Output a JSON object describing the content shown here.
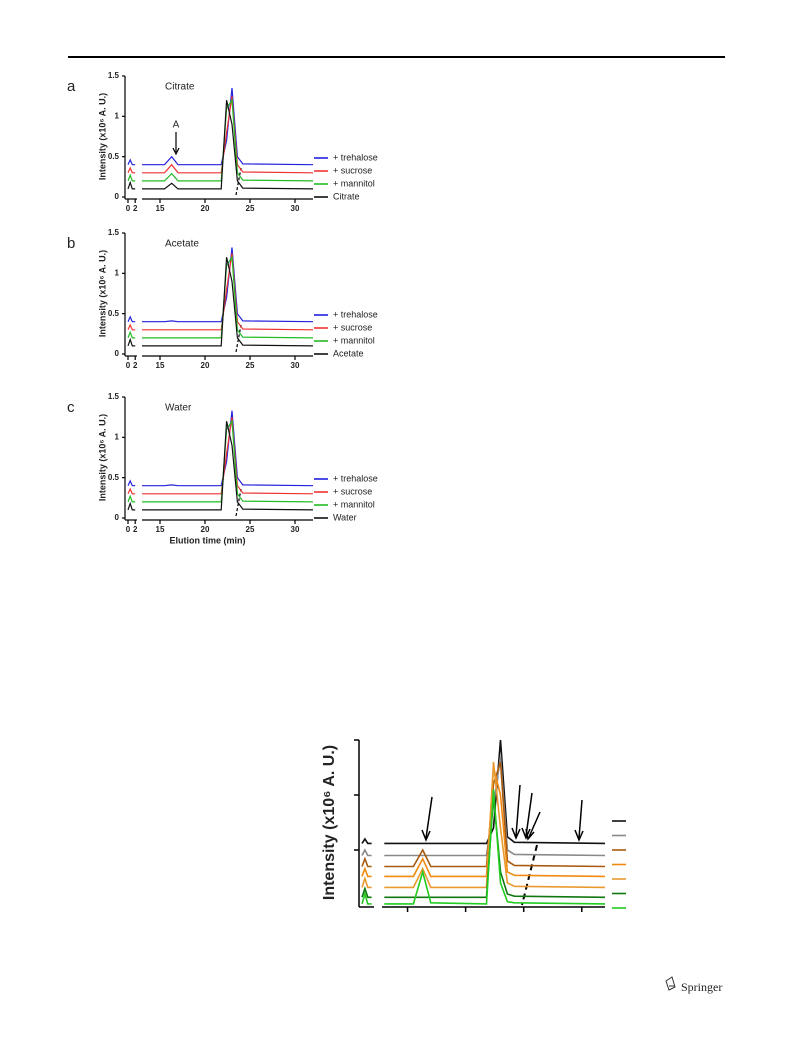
{
  "chart_data": [
    {
      "type": "line",
      "panel_label": "a",
      "subtitle": "Citrate",
      "annotation": "A",
      "ylabel": "Intensity (x10⁶ A. U.)",
      "xlim": [
        0,
        32
      ],
      "xticks": [
        0,
        2,
        15,
        20,
        25,
        30
      ],
      "ylim": [
        0,
        1.5
      ],
      "yticks": [
        0,
        0.5,
        1,
        1.5
      ],
      "x": [
        0,
        0.6,
        1.2,
        2,
        13,
        15.5,
        16.3,
        17,
        21.8,
        22.4,
        23,
        23.6,
        24.2,
        32
      ],
      "series": [
        {
          "name": "+ trehalose",
          "color": "#2222dd",
          "values": [
            0.4,
            0.46,
            0.4,
            0.4,
            0.4,
            0.4,
            0.5,
            0.4,
            0.4,
            0.7,
            1.35,
            0.5,
            0.41,
            0.4
          ]
        },
        {
          "name": "+ sucrose",
          "color": "#ee3333",
          "values": [
            0.3,
            0.36,
            0.3,
            0.3,
            0.3,
            0.3,
            0.4,
            0.3,
            0.3,
            0.8,
            1.25,
            0.4,
            0.31,
            0.3
          ]
        },
        {
          "name": "+ mannitol",
          "color": "#22bb22",
          "values": [
            0.2,
            0.27,
            0.2,
            0.2,
            0.2,
            0.2,
            0.29,
            0.2,
            0.2,
            1.1,
            1.2,
            0.3,
            0.21,
            0.2
          ]
        },
        {
          "name": "Citrate",
          "color": "#111111",
          "values": [
            0.1,
            0.18,
            0.1,
            0.1,
            0.1,
            0.1,
            0.17,
            0.1,
            0.1,
            1.2,
            0.9,
            0.2,
            0.11,
            0.1
          ]
        }
      ]
    },
    {
      "type": "line",
      "panel_label": "b",
      "subtitle": "Acetate",
      "ylabel": "Intensity (x10⁶ A. U.)",
      "xlim": [
        0,
        32
      ],
      "xticks": [
        0,
        2,
        15,
        20,
        25,
        30
      ],
      "ylim": [
        0,
        1.5
      ],
      "yticks": [
        0,
        0.5,
        1,
        1.5
      ],
      "x": [
        0,
        0.6,
        1.2,
        2,
        13,
        15.5,
        16.3,
        17,
        21.8,
        22.4,
        23,
        23.6,
        24.2,
        32
      ],
      "series": [
        {
          "name": "+ trehalose",
          "color": "#2222dd",
          "values": [
            0.4,
            0.46,
            0.4,
            0.4,
            0.4,
            0.4,
            0.41,
            0.4,
            0.4,
            0.7,
            1.32,
            0.5,
            0.41,
            0.4
          ]
        },
        {
          "name": "+ sucrose",
          "color": "#ee3333",
          "values": [
            0.3,
            0.36,
            0.3,
            0.3,
            0.3,
            0.3,
            0.3,
            0.3,
            0.3,
            0.8,
            1.25,
            0.4,
            0.31,
            0.3
          ]
        },
        {
          "name": "+ mannitol",
          "color": "#22bb22",
          "values": [
            0.2,
            0.27,
            0.2,
            0.2,
            0.2,
            0.2,
            0.2,
            0.2,
            0.2,
            1.1,
            1.2,
            0.3,
            0.21,
            0.2
          ]
        },
        {
          "name": "Acetate",
          "color": "#111111",
          "values": [
            0.1,
            0.18,
            0.1,
            0.1,
            0.1,
            0.1,
            0.1,
            0.1,
            0.1,
            1.2,
            0.9,
            0.2,
            0.11,
            0.1
          ]
        }
      ]
    },
    {
      "type": "line",
      "panel_label": "c",
      "subtitle": "Water",
      "xlabel": "Elution time (min)",
      "ylabel": "Intensity (x10⁶ A. U.)",
      "xlim": [
        0,
        32
      ],
      "xticks": [
        0,
        2,
        15,
        20,
        25,
        30
      ],
      "ylim": [
        0,
        1.5
      ],
      "yticks": [
        0,
        0.5,
        1,
        1.5
      ],
      "x": [
        0,
        0.6,
        1.2,
        2,
        13,
        15.5,
        16.3,
        17,
        21.8,
        22.4,
        23,
        23.6,
        24.2,
        32
      ],
      "series": [
        {
          "name": "+ trehalose",
          "color": "#2222dd",
          "values": [
            0.4,
            0.46,
            0.4,
            0.4,
            0.4,
            0.4,
            0.41,
            0.4,
            0.4,
            0.7,
            1.33,
            0.5,
            0.41,
            0.4
          ]
        },
        {
          "name": "+ sucrose",
          "color": "#ee3333",
          "values": [
            0.3,
            0.36,
            0.3,
            0.3,
            0.3,
            0.3,
            0.3,
            0.3,
            0.3,
            0.8,
            1.25,
            0.4,
            0.31,
            0.3
          ]
        },
        {
          "name": "+ mannitol",
          "color": "#22bb22",
          "values": [
            0.2,
            0.27,
            0.2,
            0.2,
            0.2,
            0.2,
            0.2,
            0.2,
            0.2,
            1.1,
            1.2,
            0.3,
            0.21,
            0.2
          ]
        },
        {
          "name": "Water",
          "color": "#111111",
          "values": [
            0.1,
            0.18,
            0.1,
            0.1,
            0.1,
            0.1,
            0.1,
            0.1,
            0.1,
            1.2,
            0.9,
            0.2,
            0.11,
            0.1
          ]
        }
      ]
    },
    {
      "type": "line",
      "ylabel": "Intensity (x10⁶ A. U.)",
      "xlim": [
        0,
        32
      ],
      "ylim": [
        0,
        1.5
      ],
      "x": [
        0,
        0.6,
        1.2,
        2,
        13,
        15.5,
        16.3,
        17,
        21.8,
        22.4,
        23,
        23.6,
        24.2,
        32
      ],
      "series": [
        {
          "color": "#111111",
          "values": [
            0.56,
            0.6,
            0.56,
            0.56,
            0.56,
            0.56,
            0.56,
            0.56,
            0.56,
            0.7,
            1.5,
            0.62,
            0.57,
            0.56
          ]
        },
        {
          "color": "#888888",
          "values": [
            0.45,
            0.5,
            0.45,
            0.45,
            0.45,
            0.45,
            0.45,
            0.45,
            0.45,
            0.9,
            1.35,
            0.5,
            0.46,
            0.45
          ]
        },
        {
          "color": "#a85a10",
          "values": [
            0.35,
            0.42,
            0.35,
            0.35,
            0.35,
            0.35,
            0.5,
            0.35,
            0.35,
            1.1,
            1.3,
            0.4,
            0.36,
            0.35
          ]
        },
        {
          "color": "#f08a10",
          "values": [
            0.26,
            0.33,
            0.26,
            0.26,
            0.26,
            0.26,
            0.42,
            0.26,
            0.26,
            1.25,
            1.0,
            0.3,
            0.27,
            0.26
          ]
        },
        {
          "color": "#e89a30",
          "values": [
            0.16,
            0.24,
            0.16,
            0.16,
            0.16,
            0.16,
            0.33,
            0.16,
            0.16,
            1.3,
            0.7,
            0.2,
            0.17,
            0.16
          ]
        },
        {
          "color": "#117711",
          "values": [
            0.07,
            0.15,
            0.07,
            0.07,
            0.07,
            0.07,
            0.07,
            0.07,
            0.07,
            1.0,
            0.3,
            0.1,
            0.08,
            0.07
          ]
        },
        {
          "color": "#22cc22",
          "values": [
            0.01,
            0.1,
            0.01,
            0.01,
            0.01,
            0.01,
            0.3,
            0.02,
            0.01,
            1.05,
            0.2,
            0.03,
            0.02,
            0.01
          ]
        }
      ]
    }
  ],
  "footer": {
    "publisher": "Springer"
  }
}
